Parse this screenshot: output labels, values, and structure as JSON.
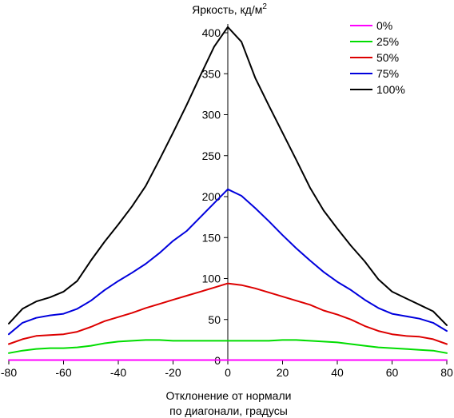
{
  "chart_data": {
    "type": "line",
    "title": "",
    "ylabel": "Яркость, кд/м",
    "ylabel_sup": "2",
    "xlabel_line1": "Отклонение от нормали",
    "xlabel_line2": "по диагонали, градусы",
    "xlim": [
      -80,
      80
    ],
    "ylim": [
      0,
      410
    ],
    "xticks": [
      "-80",
      "-60",
      "-40",
      "-20",
      "0",
      "20",
      "40",
      "60",
      "80"
    ],
    "yticks": [
      "0",
      "50",
      "100",
      "150",
      "200",
      "250",
      "300",
      "350",
      "400"
    ],
    "grid": false,
    "legend_position": "top-right",
    "series": [
      {
        "name": "0%",
        "color": "#ff00ff",
        "x": [
          -80,
          -60,
          -40,
          -20,
          0,
          20,
          40,
          60,
          80
        ],
        "y": [
          0.5,
          0.5,
          0.5,
          0.5,
          0.5,
          0.5,
          0.5,
          0.5,
          0.5
        ]
      },
      {
        "name": "25%",
        "color": "#00dd00",
        "x": [
          -80,
          -75,
          -70,
          -65,
          -60,
          -55,
          -50,
          -45,
          -40,
          -35,
          -30,
          -25,
          -20,
          -15,
          -10,
          -5,
          0,
          5,
          10,
          15,
          20,
          25,
          30,
          35,
          40,
          45,
          50,
          55,
          60,
          65,
          70,
          75,
          80
        ],
        "y": [
          9,
          12,
          14,
          15,
          15,
          16,
          18,
          21,
          23,
          24,
          25,
          25,
          24,
          24,
          24,
          24,
          24,
          24,
          24,
          24,
          25,
          25,
          24,
          23,
          22,
          20,
          18,
          16,
          15,
          14,
          13,
          12,
          9
        ]
      },
      {
        "name": "50%",
        "color": "#dd0000",
        "x": [
          -80,
          -75,
          -70,
          -65,
          -60,
          -55,
          -50,
          -45,
          -40,
          -35,
          -30,
          -25,
          -20,
          -15,
          -10,
          -5,
          0,
          5,
          10,
          15,
          20,
          25,
          30,
          35,
          40,
          45,
          50,
          55,
          60,
          65,
          70,
          75,
          80
        ],
        "y": [
          20,
          26,
          30,
          31,
          32,
          35,
          41,
          48,
          53,
          58,
          64,
          69,
          74,
          79,
          84,
          89,
          94,
          92,
          88,
          83,
          78,
          73,
          68,
          61,
          56,
          50,
          42,
          36,
          32,
          30,
          29,
          26,
          20
        ]
      },
      {
        "name": "75%",
        "color": "#0000dd",
        "x": [
          -80,
          -75,
          -70,
          -65,
          -60,
          -55,
          -50,
          -45,
          -40,
          -35,
          -30,
          -25,
          -20,
          -15,
          -10,
          -5,
          0,
          5,
          10,
          15,
          20,
          25,
          30,
          35,
          40,
          45,
          50,
          55,
          60,
          65,
          70,
          75,
          80
        ],
        "y": [
          32,
          46,
          52,
          55,
          57,
          63,
          73,
          86,
          97,
          107,
          118,
          131,
          146,
          158,
          175,
          192,
          209,
          201,
          186,
          170,
          153,
          137,
          122,
          108,
          96,
          86,
          74,
          64,
          57,
          54,
          51,
          46,
          36
        ]
      },
      {
        "name": "100%",
        "color": "#000000",
        "x": [
          -80,
          -75,
          -70,
          -65,
          -60,
          -55,
          -50,
          -45,
          -40,
          -35,
          -30,
          -25,
          -20,
          -15,
          -10,
          -5,
          0,
          5,
          10,
          15,
          20,
          25,
          30,
          35,
          40,
          45,
          50,
          55,
          60,
          65,
          70,
          75,
          80
        ],
        "y": [
          45,
          63,
          72,
          77,
          84,
          97,
          122,
          145,
          166,
          188,
          213,
          245,
          278,
          312,
          348,
          383,
          407,
          389,
          345,
          311,
          278,
          245,
          211,
          183,
          161,
          140,
          121,
          99,
          84,
          76,
          68,
          60,
          43
        ]
      }
    ]
  }
}
